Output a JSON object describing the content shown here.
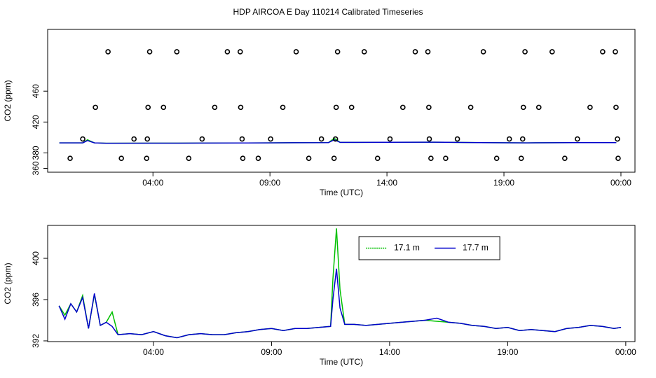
{
  "chart_data": [
    {
      "type": "line",
      "title": "HDP AIRCOA E  Day 110214  Calibrated Timeseries",
      "x_label": "Time (UTC)",
      "y_label": "CO2 (ppm)",
      "xlim": [
        -0.5,
        24.6
      ],
      "ylim": [
        355,
        540
      ],
      "xticks": [
        {
          "value": 4,
          "label": "04:00"
        },
        {
          "value": 9,
          "label": "09:00"
        },
        {
          "value": 14,
          "label": "14:00"
        },
        {
          "value": 19,
          "label": "19:00"
        },
        {
          "value": 24,
          "label": "00:00"
        }
      ],
      "yticks": [
        360,
        380,
        420,
        460
      ],
      "series": [
        {
          "color": "#00c000",
          "x": [
            0,
            1,
            1.2,
            1.5,
            2,
            4,
            6,
            8,
            10,
            11.5,
            11.75,
            12,
            14,
            16,
            18,
            20,
            22,
            23.8
          ],
          "values": [
            393,
            393,
            397,
            393,
            392.5,
            392.6,
            392.7,
            392.9,
            393.2,
            393.4,
            399,
            393.6,
            393.7,
            393.9,
            393.4,
            393.0,
            393.3,
            393.3
          ]
        },
        {
          "color": "#0000cc",
          "x": [
            0,
            1,
            1.2,
            1.5,
            2,
            4,
            6,
            8,
            10,
            11.5,
            11.75,
            12,
            14,
            16,
            18,
            20,
            22,
            23.8
          ],
          "values": [
            393,
            393,
            396,
            393,
            392.5,
            392.6,
            392.7,
            392.9,
            393.2,
            393.4,
            397,
            393.6,
            393.7,
            393.9,
            393.4,
            393.0,
            393.3,
            393.3
          ]
        },
        {
          "color": "#000000",
          "marker": "circle",
          "x": [
            2.08,
            3.86,
            5.02,
            7.18,
            7.73,
            10.12,
            11.89,
            13.03,
            15.21,
            15.75,
            18.12,
            19.9,
            21.06,
            23.22,
            23.76,
            1.54,
            3.79,
            4.45,
            6.64,
            7.75,
            9.55,
            11.83,
            12.49,
            14.68,
            15.79,
            17.58,
            19.83,
            20.49,
            22.68,
            23.79,
            1.0,
            3.19,
            3.76,
            6.1,
            7.81,
            9.03,
            11.2,
            11.8,
            14.13,
            15.81,
            17.01,
            19.23,
            19.8,
            22.14,
            23.85,
            0.46,
            2.65,
            3.73,
            5.53,
            7.84,
            8.5,
            10.66,
            11.74,
            13.6,
            15.88,
            16.51,
            18.69,
            19.74,
            21.6,
            23.88
          ],
          "values": [
            511,
            511,
            511,
            511,
            511,
            511,
            511,
            511,
            511,
            511,
            511,
            511,
            511,
            511,
            511,
            439,
            439,
            439,
            439,
            439,
            439,
            439,
            439,
            439,
            439,
            439,
            439,
            439,
            439,
            439,
            398,
            398,
            398,
            398,
            398,
            398,
            398,
            398,
            398,
            398,
            398,
            398,
            398,
            398,
            398,
            373,
            373,
            373,
            373,
            373,
            373,
            373,
            373,
            373,
            373,
            373,
            373,
            373,
            373,
            373
          ]
        }
      ]
    },
    {
      "type": "line",
      "x_label": "Time (UTC)",
      "y_label": "CO2 (ppm)",
      "xlim": [
        -0.48,
        24.39
      ],
      "ylim": [
        391.93,
        403.19
      ],
      "xticks": [
        {
          "value": 4,
          "label": "04:00"
        },
        {
          "value": 9,
          "label": "09:00"
        },
        {
          "value": 14,
          "label": "14:00"
        },
        {
          "value": 19,
          "label": "19:00"
        },
        {
          "value": 24,
          "label": "00:00"
        }
      ],
      "yticks": [
        392,
        396,
        400
      ],
      "legend": "top",
      "series": [
        {
          "name": "17.1 m",
          "color": "#00c000",
          "x": [
            0,
            0.25,
            0.5,
            0.75,
            1,
            1.25,
            1.5,
            1.75,
            2,
            2.25,
            2.5,
            3,
            3.5,
            4,
            4.5,
            5,
            5.5,
            6,
            6.5,
            7,
            7.5,
            8,
            8.5,
            9,
            9.5,
            10,
            10.5,
            11,
            11.5,
            11.6,
            11.75,
            11.9,
            12.1,
            12.5,
            13,
            13.5,
            14,
            14.5,
            15,
            15.5,
            16,
            16.5,
            17,
            17.5,
            18,
            18.5,
            19,
            19.5,
            20,
            20.5,
            21,
            21.5,
            22,
            22.5,
            23,
            23.5,
            23.8
          ],
          "values": [
            395.4,
            394.5,
            395.6,
            394.8,
            396.4,
            393.2,
            396.5,
            393.5,
            393.8,
            394.8,
            392.6,
            392.7,
            392.6,
            392.9,
            392.5,
            392.3,
            392.6,
            392.7,
            392.6,
            392.6,
            392.8,
            392.9,
            393.1,
            393.2,
            393.0,
            393.2,
            393.2,
            393.3,
            393.4,
            398.0,
            402.9,
            397.0,
            393.6,
            393.6,
            393.5,
            393.6,
            393.7,
            393.8,
            393.9,
            394.0,
            393.9,
            393.8,
            393.7,
            393.5,
            393.4,
            393.2,
            393.3,
            393.0,
            393.1,
            393.0,
            392.9,
            393.2,
            393.3,
            393.5,
            393.4,
            393.2,
            393.3
          ]
        },
        {
          "name": "17.7 m",
          "color": "#0000cc",
          "x": [
            0,
            0.25,
            0.5,
            0.75,
            1,
            1.25,
            1.5,
            1.75,
            2,
            2.25,
            2.5,
            3,
            3.5,
            4,
            4.5,
            5,
            5.5,
            6,
            6.5,
            7,
            7.5,
            8,
            8.5,
            9,
            9.5,
            10,
            10.5,
            11,
            11.5,
            11.6,
            11.75,
            11.9,
            12.1,
            12.5,
            13,
            13.5,
            14,
            14.5,
            15,
            15.5,
            16,
            16.5,
            17,
            17.5,
            18,
            18.5,
            19,
            19.5,
            20,
            20.5,
            21,
            21.5,
            22,
            22.5,
            23,
            23.5,
            23.8
          ],
          "values": [
            395.4,
            394.1,
            395.6,
            394.8,
            396.2,
            393.2,
            396.6,
            393.5,
            393.8,
            393.4,
            392.6,
            392.7,
            392.6,
            392.9,
            392.5,
            392.3,
            392.6,
            392.7,
            392.6,
            392.6,
            392.8,
            392.9,
            393.1,
            393.2,
            393.0,
            393.2,
            393.2,
            393.3,
            393.4,
            396.0,
            399.0,
            395.2,
            393.6,
            393.6,
            393.5,
            393.6,
            393.7,
            393.8,
            393.9,
            394.0,
            394.2,
            393.8,
            393.7,
            393.5,
            393.4,
            393.2,
            393.3,
            393.0,
            393.1,
            393.0,
            392.9,
            393.2,
            393.3,
            393.5,
            393.4,
            393.2,
            393.3
          ]
        }
      ]
    }
  ]
}
